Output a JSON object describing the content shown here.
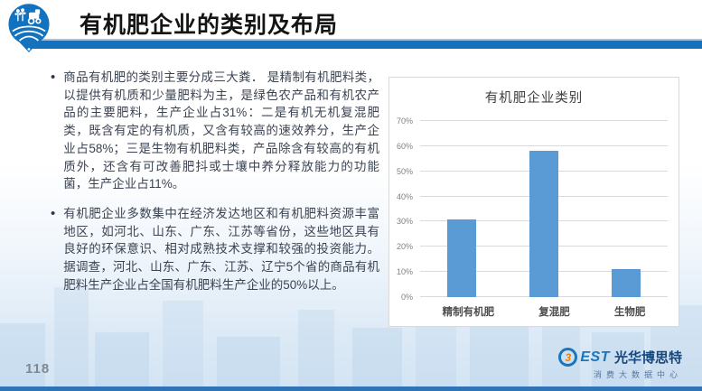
{
  "header": {
    "title": "有机肥企业的类别及布局",
    "logo_icon": "agriculture-pin-icon"
  },
  "body": {
    "bullets": [
      "商品有机肥的类别主要分成三大粪． 是精制有机肥料类，以提供有机质和少量肥料为主，是绿色农产品和有机农产品的主要肥料，生产企业占31%：二是有机无机复混肥类，既含有定的有机质，又含有较高的速效养分，生产企业占58%；三是生物有机肥料类，产品除含有较高的有机质外，还含有可改善肥抖或士壤中养分释放能力的功能菌，生产企业占11%。",
      "有机肥企业多数集中在经济发达地区和有机肥料资源丰富地区，如河北、山东、广东、江苏等省份，这些地区具有良好的环保意识、相对成熟技术支撑和较强的投资能力。据调查，河北、山东、广东、江苏、辽宁5个省的商品有机肥料生产企业占全国有机肥料生产企业的50%以上。"
    ]
  },
  "chart_data": {
    "type": "bar",
    "title": "有机肥企业类别",
    "categories": [
      "精制有机肥",
      "复混肥",
      "生物肥"
    ],
    "values": [
      31,
      58,
      11
    ],
    "xlabel": "",
    "ylabel": "",
    "ylim": [
      0,
      70
    ],
    "yticks": [
      0,
      10,
      20,
      30,
      40,
      50,
      60,
      70
    ],
    "ytick_suffix": "%",
    "grid": true,
    "legend": false,
    "bar_color": "#5b9bd5"
  },
  "footer": {
    "page_number": "118",
    "brand": {
      "logo_b": "3",
      "logo_rest": "EST",
      "name": "光华博思特",
      "subtitle": "消费大数据中心"
    }
  },
  "colors": {
    "accent_blue": "#1272be",
    "bar_blue": "#5b9bd5",
    "brand_blue": "#1b75bb",
    "brand_orange": "#f08300"
  }
}
